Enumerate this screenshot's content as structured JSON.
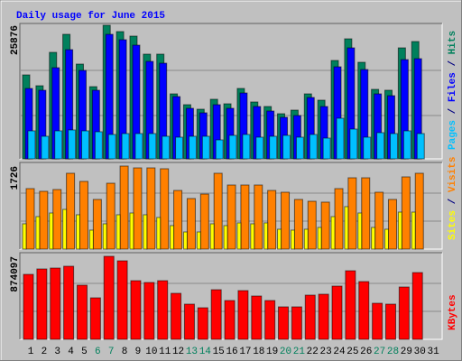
{
  "chart_data": [
    {
      "type": "bar",
      "title": "Daily usage for June 2015",
      "legend_separator": " / ",
      "ylim": [
        0,
        25876
      ],
      "yticks": [
        25876
      ],
      "series": [
        {
          "name": "Hits",
          "color": "#00805c",
          "values": [
            16259,
            14160,
            20630,
            24125,
            18356,
            13986,
            25876,
            24650,
            23775,
            20280,
            20280,
            12587,
            10490,
            9615,
            11540,
            10665,
            13637,
            11015,
            10140,
            8740,
            9440,
            12587,
            11365,
            19055,
            23250,
            18706,
            13460,
            13290,
            21500,
            22725,
            null
          ]
        },
        {
          "name": "Files",
          "color": "#0000ff",
          "values": [
            13634,
            13285,
            17655,
            21151,
            17130,
            13285,
            24122,
            23074,
            22025,
            18878,
            18529,
            12061,
            9789,
            8915,
            10488,
            9789,
            12760,
            10138,
            9264,
            8041,
            8390,
            11886,
            10138,
            17830,
            21500,
            17305,
            12586,
            12236,
            19228,
            19403,
            null
          ]
        },
        {
          "name": "Pages",
          "color": "#00c0ff",
          "values": [
            5419,
            4370,
            5419,
            5594,
            5419,
            5244,
            4720,
            4894,
            4894,
            4894,
            4370,
            4195,
            4370,
            4370,
            3671,
            4545,
            4720,
            4195,
            4370,
            4545,
            4195,
            4720,
            4020,
            7866,
            5768,
            4195,
            5069,
            4894,
            5419,
            4894,
            null
          ]
        }
      ]
    },
    {
      "type": "bar",
      "legend_separator": " / ",
      "ylim": [
        0,
        1726
      ],
      "yticks": [
        1726
      ],
      "series": [
        {
          "name": "Visits",
          "color": "#ff8000",
          "values": [
            1257,
            1201,
            1238,
            1576,
            1407,
            1032,
            1369,
            1726,
            1688,
            1688,
            1670,
            1219,
            1051,
            1144,
            1576,
            1332,
            1332,
            1332,
            1219,
            1182,
            1032,
            994,
            976,
            1257,
            1482,
            1482,
            1182,
            1032,
            1501,
            1576,
            null
          ]
        },
        {
          "name": "Sites",
          "color": "#ffff00",
          "values": [
            525,
            675,
            750,
            825,
            713,
            394,
            525,
            713,
            750,
            713,
            657,
            488,
            356,
            356,
            525,
            488,
            544,
            525,
            544,
            413,
            394,
            413,
            450,
            675,
            882,
            750,
            450,
            413,
            769,
            769,
            null
          ]
        }
      ]
    },
    {
      "type": "bar",
      "ylim": [
        0,
        874097
      ],
      "yticks": [
        874097
      ],
      "categories": [
        "1",
        "2",
        "3",
        "4",
        "5",
        "6",
        "7",
        "8",
        "9",
        "10",
        "11",
        "12",
        "13",
        "14",
        "15",
        "16",
        "17",
        "18",
        "19",
        "20",
        "21",
        "22",
        "23",
        "24",
        "25",
        "26",
        "27",
        "28",
        "29",
        "30",
        "31"
      ],
      "category_colors": [
        "#000000",
        "#000000",
        "#000000",
        "#000000",
        "#000000",
        "#00805c",
        "#00805c",
        "#000000",
        "#000000",
        "#000000",
        "#000000",
        "#000000",
        "#00805c",
        "#00805c",
        "#000000",
        "#000000",
        "#000000",
        "#000000",
        "#000000",
        "#00805c",
        "#00805c",
        "#000000",
        "#000000",
        "#000000",
        "#000000",
        "#000000",
        "#00805c",
        "#00805c",
        "#000000",
        "#000000",
        "#000000"
      ],
      "series": [
        {
          "name": "KBytes",
          "color": "#ff0000",
          "values": [
            684072,
            741078,
            750579,
            769581,
            570060,
            437046,
            874097,
            826587,
            617565,
            598563,
            617565,
            484551,
            370539,
            332535,
            522555,
            408543,
            513054,
            456048,
            408543,
            342036,
            342036,
            465549,
            475050,
            560559,
            722076,
            608064,
            380040,
            370539,
            551058,
            703074,
            null
          ]
        }
      ]
    }
  ]
}
